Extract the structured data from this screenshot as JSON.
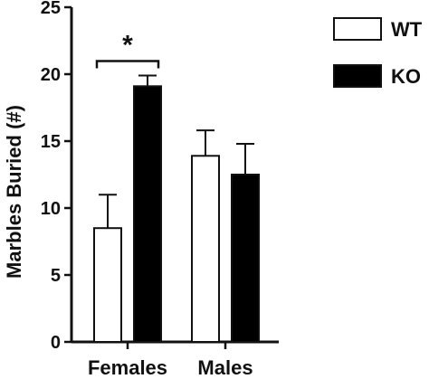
{
  "chart_data": {
    "type": "bar",
    "title": "",
    "categories": [
      "Females",
      "Males"
    ],
    "series": [
      {
        "name": "WT",
        "values": [
          8.5,
          13.9
        ],
        "errors": [
          2.5,
          1.9
        ],
        "color": "#ffffff"
      },
      {
        "name": "KO",
        "values": [
          19.1,
          12.5
        ],
        "errors": [
          0.8,
          2.3
        ],
        "color": "#000000"
      }
    ],
    "xlabel": "",
    "ylabel": "Marbles Buried (#)",
    "ylim": [
      0,
      25
    ],
    "yticks": [
      0,
      5,
      10,
      15,
      20,
      25
    ],
    "grid": false,
    "legend_position": "top-right",
    "annotations": [
      {
        "text": "*",
        "category": "Females",
        "between": [
          "WT",
          "KO"
        ]
      }
    ]
  }
}
